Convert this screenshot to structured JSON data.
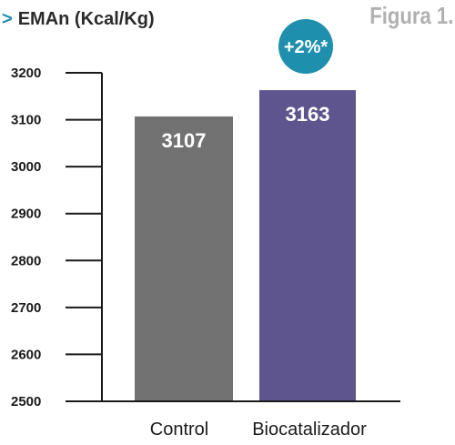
{
  "figure_label": "Figura 1.",
  "header": {
    "arrow": ">",
    "title": "EMAn (Kcal/Kg)"
  },
  "badge": {
    "text": "+2%*",
    "color": "#1f8fae"
  },
  "colors": {
    "control": "#727272",
    "biocatalizador": "#5e558f",
    "axis": "#1a1a1a",
    "tick_text": "#1a1a1a",
    "value_text": "#ffffff"
  },
  "chart_data": {
    "type": "bar",
    "title": "EMAn (Kcal/Kg)",
    "categories": [
      "Control",
      "Biocatalizador"
    ],
    "values": [
      3107,
      3163
    ],
    "value_labels": [
      "3107",
      "3163"
    ],
    "ylim": [
      2500,
      3200
    ],
    "yticks": [
      2500,
      2600,
      2700,
      2800,
      2900,
      3000,
      3100,
      3200
    ],
    "ytick_labels": [
      "2500",
      "2600",
      "2700",
      "2800",
      "2900",
      "3000",
      "3100",
      "3200"
    ],
    "grid": false,
    "annotation": "+2%*"
  }
}
